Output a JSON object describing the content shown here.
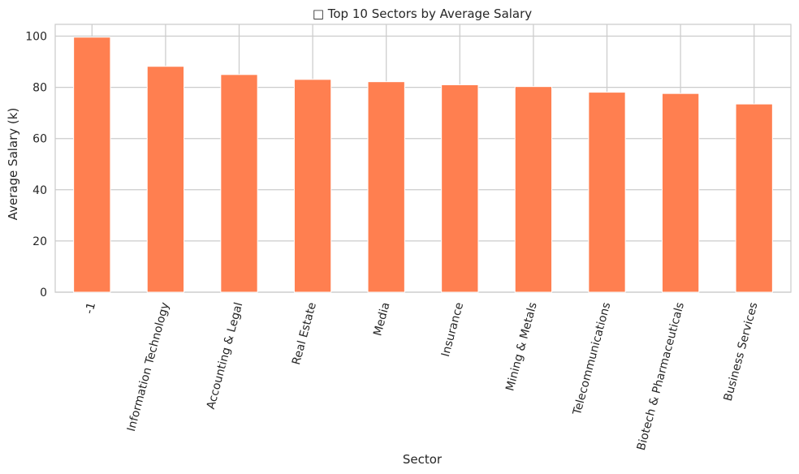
{
  "chart_data": {
    "type": "bar",
    "title": "□ Top 10 Sectors by Average Salary",
    "xlabel": "Sector",
    "ylabel": "Average Salary (k)",
    "categories": [
      "-1",
      "Information Technology",
      "Accounting & Legal",
      "Real Estate",
      "Media",
      "Insurance",
      "Mining & Metals",
      "Telecommunications",
      "Biotech & Pharmaceuticals",
      "Business Services"
    ],
    "values": [
      99.6,
      88.2,
      85.0,
      83.1,
      82.2,
      81.0,
      80.3,
      78.1,
      77.6,
      73.5
    ],
    "yticks": [
      0,
      20,
      40,
      60,
      80,
      100
    ],
    "ylim": [
      0,
      104.6
    ],
    "grid": true,
    "bar_color": "#ff7f50",
    "grid_color": "#cccccc"
  }
}
